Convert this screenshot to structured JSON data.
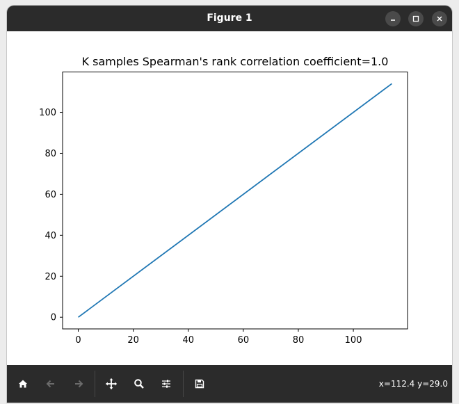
{
  "window": {
    "title": "Figure 1",
    "minimize_icon": "minimize-icon",
    "maximize_icon": "maximize-icon",
    "close_icon": "close-icon"
  },
  "chart_data": {
    "type": "line",
    "title": "K samples  Spearman's rank correlation coefficient=1.0",
    "xlabel": "",
    "ylabel": "",
    "xlim": [
      -5.7,
      119.7
    ],
    "ylim": [
      -5.7,
      119.7
    ],
    "xticks": [
      0,
      20,
      40,
      60,
      80,
      100
    ],
    "yticks": [
      0,
      20,
      40,
      60,
      80,
      100
    ],
    "grid": false,
    "series": [
      {
        "x": [
          0,
          114
        ],
        "y": [
          0,
          114
        ],
        "color": "#1f77b4"
      }
    ]
  },
  "toolbar": {
    "buttons": [
      {
        "icon": "home-icon",
        "enabled": true
      },
      {
        "icon": "back-arrow-icon",
        "enabled": false
      },
      {
        "icon": "forward-arrow-icon",
        "enabled": false
      },
      {
        "icon": "pan-icon",
        "enabled": true
      },
      {
        "icon": "zoom-icon",
        "enabled": true
      },
      {
        "icon": "configure-subplots-icon",
        "enabled": true
      },
      {
        "icon": "save-icon",
        "enabled": true
      }
    ],
    "coords": "x=112.4 y=29.0"
  }
}
